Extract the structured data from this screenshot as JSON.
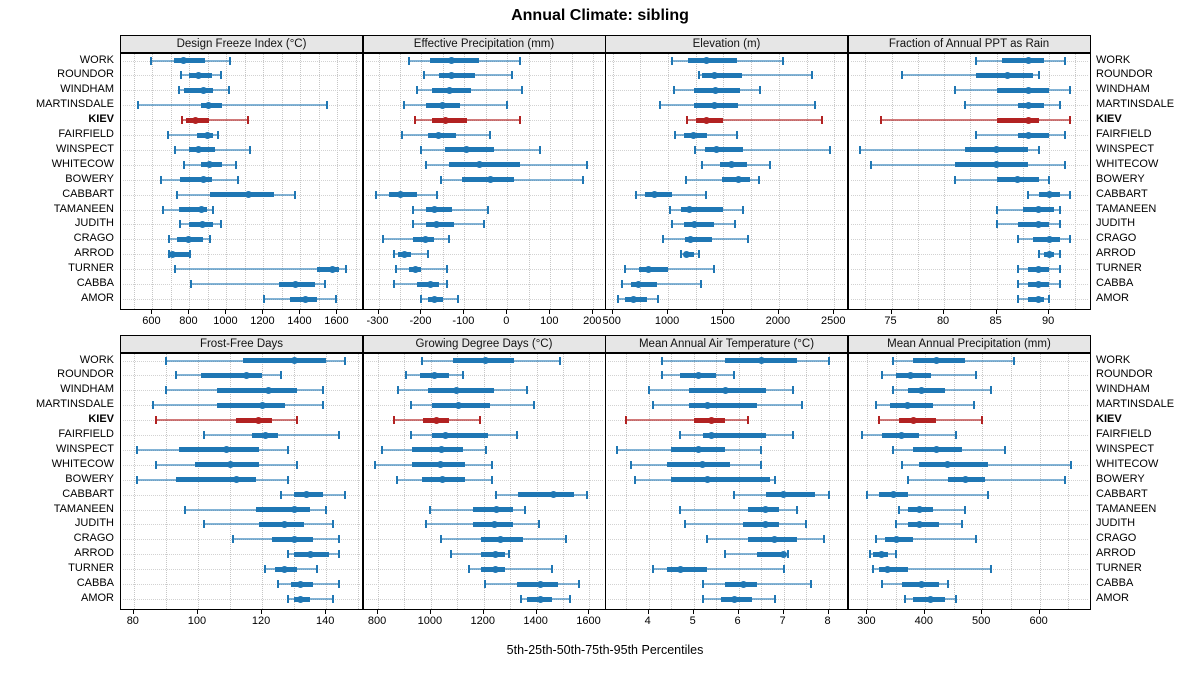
{
  "title": "Annual Climate: sibling",
  "footer": "5th-25th-50th-75th-95th Percentiles",
  "percentile_labels": [
    "5th",
    "25th",
    "50th",
    "75th",
    "95th"
  ],
  "sites": [
    "WORK",
    "ROUNDOR",
    "WINDHAM",
    "MARTINSDALE",
    "KIEV",
    "FAIRFIELD",
    "WINSPECT",
    "WHITECOW",
    "BOWERY",
    "CABBART",
    "TAMANEEN",
    "JUDITH",
    "CRAGO",
    "ARROD",
    "TURNER",
    "CABBA",
    "AMOR"
  ],
  "highlight_site": "KIEV",
  "colors": {
    "normal": "#1f77b4",
    "normal_faint": "rgba(31,119,180,0.55)",
    "highlight": "#b22222",
    "highlight_faint": "rgba(178,34,34,0.6)",
    "header_bg": "#e6e6e6",
    "border": "#000000",
    "grid": "#c6c6c6"
  },
  "chart_data": [
    {
      "type": "percentile-whisker",
      "title": "Design Freeze Index (°C)",
      "xlim": [
        430,
        1730
      ],
      "ticks": [
        600,
        800,
        1000,
        1200,
        1400,
        1600
      ],
      "minor_step": 100,
      "values": [
        [
          590,
          715,
          770,
          885,
          1020
        ],
        [
          755,
          795,
          850,
          920,
          970
        ],
        [
          745,
          770,
          875,
          930,
          1015
        ],
        [
          520,
          860,
          905,
          975,
          1545
        ],
        [
          760,
          780,
          830,
          905,
          1115
        ],
        [
          685,
          840,
          900,
          930,
          955
        ],
        [
          720,
          795,
          850,
          940,
          1125
        ],
        [
          770,
          860,
          910,
          975,
          1050
        ],
        [
          645,
          750,
          875,
          920,
          1060
        ],
        [
          730,
          910,
          1120,
          1255,
          1370
        ],
        [
          655,
          745,
          865,
          895,
          925
        ],
        [
          750,
          800,
          870,
          925,
          970
        ],
        [
          690,
          735,
          795,
          875,
          910
        ],
        [
          690,
          695,
          710,
          795,
          805
        ],
        [
          720,
          1490,
          1575,
          1610,
          1645
        ],
        [
          810,
          1285,
          1375,
          1480,
          1530
        ],
        [
          1205,
          1345,
          1425,
          1490,
          1590
        ]
      ]
    },
    {
      "type": "percentile-whisker",
      "title": "Effective Precipitation (mm)",
      "xlim": [
        -335,
        225
      ],
      "ticks": [
        -300,
        -200,
        -100,
        0,
        100,
        200
      ],
      "minor_step": 50,
      "values": [
        [
          -230,
          -180,
          -130,
          -65,
          30
        ],
        [
          -195,
          -160,
          -130,
          -75,
          10
        ],
        [
          -210,
          -175,
          -135,
          -85,
          35
        ],
        [
          -240,
          -190,
          -150,
          -110,
          0
        ],
        [
          -215,
          -175,
          -145,
          -95,
          30
        ],
        [
          -245,
          -185,
          -160,
          -120,
          -40
        ],
        [
          -200,
          -145,
          -95,
          -30,
          75
        ],
        [
          -190,
          -135,
          -65,
          30,
          185
        ],
        [
          -155,
          -105,
          -40,
          15,
          175
        ],
        [
          -305,
          -275,
          -250,
          -210,
          -165
        ],
        [
          -220,
          -190,
          -170,
          -130,
          -45
        ],
        [
          -220,
          -190,
          -165,
          -125,
          -55
        ],
        [
          -290,
          -220,
          -190,
          -170,
          -135
        ],
        [
          -265,
          -255,
          -240,
          -225,
          -185
        ],
        [
          -260,
          -230,
          -215,
          -200,
          -140
        ],
        [
          -265,
          -210,
          -180,
          -160,
          -140
        ],
        [
          -200,
          -185,
          -170,
          -150,
          -115
        ]
      ]
    },
    {
      "type": "percentile-whisker",
      "title": "Elevation (m)",
      "xlim": [
        440,
        2610
      ],
      "ticks": [
        500,
        1000,
        1500,
        2000,
        2500
      ],
      "minor_step": 250,
      "values": [
        [
          1040,
          1180,
          1350,
          1620,
          2040
        ],
        [
          1275,
          1310,
          1420,
          1665,
          2295
        ],
        [
          1050,
          1230,
          1430,
          1645,
          1830
        ],
        [
          930,
          1230,
          1420,
          1630,
          2330
        ],
        [
          1170,
          1255,
          1350,
          1500,
          2390
        ],
        [
          1060,
          1140,
          1225,
          1350,
          1620
        ],
        [
          1240,
          1335,
          1435,
          1675,
          2460
        ],
        [
          1305,
          1470,
          1575,
          1715,
          1920
        ],
        [
          1160,
          1485,
          1635,
          1740,
          1820
        ],
        [
          715,
          795,
          880,
          1035,
          1340
        ],
        [
          1020,
          1120,
          1190,
          1500,
          1675
        ],
        [
          1035,
          1140,
          1235,
          1410,
          1605
        ],
        [
          955,
          1155,
          1205,
          1395,
          1725
        ],
        [
          1120,
          1140,
          1170,
          1235,
          1280
        ],
        [
          615,
          735,
          825,
          1000,
          1410
        ],
        [
          585,
          670,
          730,
          900,
          1300
        ],
        [
          550,
          615,
          690,
          810,
          905
        ]
      ]
    },
    {
      "type": "percentile-whisker",
      "title": "Fraction of Annual PPT as Rain",
      "xlim": [
        70.9,
        93.8
      ],
      "ticks": [
        75,
        80,
        85,
        90
      ],
      "minor_step": 2.5,
      "values": [
        [
          83,
          85.5,
          88,
          89.5,
          91.5
        ],
        [
          76,
          83,
          86,
          88.5,
          89
        ],
        [
          81,
          85,
          88,
          90,
          92
        ],
        [
          82,
          87,
          88,
          89.5,
          91
        ],
        [
          74,
          85,
          88,
          89,
          92
        ],
        [
          83,
          87,
          88,
          90,
          91.5
        ],
        [
          72,
          82,
          85,
          88,
          89
        ],
        [
          73,
          81,
          85,
          88,
          91.5
        ],
        [
          81,
          85,
          87,
          89,
          90
        ],
        [
          88,
          89,
          90,
          91,
          92
        ],
        [
          85,
          87.5,
          89,
          90.5,
          91
        ],
        [
          85,
          87,
          89,
          90,
          91
        ],
        [
          87,
          88.5,
          90,
          91,
          92
        ],
        [
          89,
          89.5,
          90,
          90.5,
          91
        ],
        [
          87,
          88,
          89,
          90,
          91
        ],
        [
          87,
          88,
          89,
          90,
          91
        ],
        [
          87,
          88,
          89,
          89.5,
          90
        ]
      ]
    },
    {
      "type": "percentile-whisker",
      "title": "Frost-Free Days",
      "xlim": [
        76,
        151
      ],
      "ticks": [
        80,
        100,
        120,
        140
      ],
      "minor_step": 10,
      "values": [
        [
          90,
          114,
          130,
          140,
          146
        ],
        [
          93,
          101,
          115,
          120,
          126
        ],
        [
          90,
          106,
          122,
          131,
          139
        ],
        [
          86,
          106,
          120,
          127,
          139
        ],
        [
          87,
          112,
          119,
          123,
          131
        ],
        [
          102,
          117,
          121,
          125,
          144
        ],
        [
          81,
          94,
          109,
          119,
          128
        ],
        [
          87,
          99,
          110,
          119,
          131
        ],
        [
          81,
          93,
          112,
          118,
          128
        ],
        [
          126,
          130,
          134,
          139,
          146
        ],
        [
          96,
          118,
          130,
          135,
          140
        ],
        [
          102,
          119,
          127,
          133,
          142
        ],
        [
          111,
          123,
          130,
          136,
          144
        ],
        [
          128,
          130,
          135,
          141,
          144
        ],
        [
          121,
          124,
          127,
          131,
          137
        ],
        [
          125,
          129,
          132,
          136,
          144
        ],
        [
          128,
          130,
          132,
          135,
          142
        ]
      ]
    },
    {
      "type": "percentile-whisker",
      "title": "Growing Degree Days (°C)",
      "xlim": [
        745,
        1655
      ],
      "ticks": [
        800,
        1000,
        1200,
        1400,
        1600
      ],
      "minor_step": 100,
      "values": [
        [
          965,
          1085,
          1205,
          1315,
          1490
        ],
        [
          905,
          960,
          1015,
          1070,
          1120
        ],
        [
          875,
          990,
          1095,
          1240,
          1365
        ],
        [
          925,
          1005,
          1105,
          1225,
          1390
        ],
        [
          860,
          970,
          1020,
          1070,
          1185
        ],
        [
          925,
          1005,
          1055,
          1215,
          1325
        ],
        [
          815,
          930,
          1040,
          1120,
          1210
        ],
        [
          790,
          930,
          1035,
          1130,
          1230
        ],
        [
          870,
          965,
          1045,
          1130,
          1230
        ],
        [
          1245,
          1330,
          1465,
          1540,
          1590
        ],
        [
          995,
          1160,
          1250,
          1310,
          1355
        ],
        [
          980,
          1160,
          1240,
          1310,
          1410
        ],
        [
          1040,
          1190,
          1265,
          1350,
          1510
        ],
        [
          1075,
          1190,
          1245,
          1280,
          1295
        ],
        [
          1145,
          1190,
          1245,
          1280,
          1460
        ],
        [
          1205,
          1325,
          1415,
          1480,
          1560
        ],
        [
          1340,
          1365,
          1415,
          1460,
          1525
        ]
      ]
    },
    {
      "type": "percentile-whisker",
      "title": "Mean Annual Air Temperature (°C)",
      "xlim": [
        3.05,
        8.4
      ],
      "ticks": [
        4,
        5,
        6,
        7,
        8
      ],
      "minor_step": 0.5,
      "values": [
        [
          4.3,
          5.7,
          6.5,
          7.3,
          8.0
        ],
        [
          4.3,
          4.7,
          5.1,
          5.5,
          5.9
        ],
        [
          4.0,
          4.9,
          5.7,
          6.6,
          7.2
        ],
        [
          4.1,
          4.9,
          5.3,
          6.4,
          7.4
        ],
        [
          3.5,
          5.0,
          5.4,
          5.7,
          6.2
        ],
        [
          4.7,
          5.2,
          5.4,
          6.6,
          7.2
        ],
        [
          3.3,
          4.5,
          5.1,
          5.7,
          6.5
        ],
        [
          3.6,
          4.4,
          5.2,
          5.8,
          6.5
        ],
        [
          3.7,
          4.5,
          5.3,
          6.7,
          6.8
        ],
        [
          5.9,
          6.6,
          7.0,
          7.7,
          8.0
        ],
        [
          4.7,
          6.2,
          6.6,
          6.9,
          7.3
        ],
        [
          4.8,
          6.1,
          6.6,
          6.9,
          7.5
        ],
        [
          5.3,
          6.2,
          6.8,
          7.3,
          7.9
        ],
        [
          5.7,
          6.4,
          7.0,
          7.05,
          7.1
        ],
        [
          4.1,
          4.4,
          4.7,
          5.3,
          7.0
        ],
        [
          5.2,
          5.7,
          6.1,
          6.4,
          7.6
        ],
        [
          5.2,
          5.6,
          5.9,
          6.3,
          6.8
        ]
      ]
    },
    {
      "type": "percentile-whisker",
      "title": "Mean Annual Precipitation (mm)",
      "xlim": [
        267,
        686
      ],
      "ticks": [
        300,
        400,
        500,
        600
      ],
      "minor_step": 50,
      "values": [
        [
          345,
          380,
          420,
          470,
          555
        ],
        [
          325,
          350,
          375,
          410,
          490
        ],
        [
          345,
          370,
          395,
          435,
          515
        ],
        [
          315,
          340,
          370,
          415,
          485
        ],
        [
          320,
          355,
          380,
          420,
          500
        ],
        [
          290,
          325,
          360,
          390,
          455
        ],
        [
          345,
          380,
          420,
          465,
          540
        ],
        [
          360,
          390,
          440,
          510,
          655
        ],
        [
          370,
          440,
          470,
          505,
          645
        ],
        [
          300,
          320,
          345,
          370,
          510
        ],
        [
          355,
          370,
          390,
          415,
          470
        ],
        [
          350,
          370,
          390,
          425,
          465
        ],
        [
          315,
          330,
          350,
          380,
          490
        ],
        [
          305,
          310,
          325,
          335,
          350
        ],
        [
          310,
          320,
          335,
          370,
          515
        ],
        [
          325,
          360,
          395,
          425,
          440
        ],
        [
          365,
          380,
          410,
          435,
          455
        ]
      ]
    }
  ]
}
